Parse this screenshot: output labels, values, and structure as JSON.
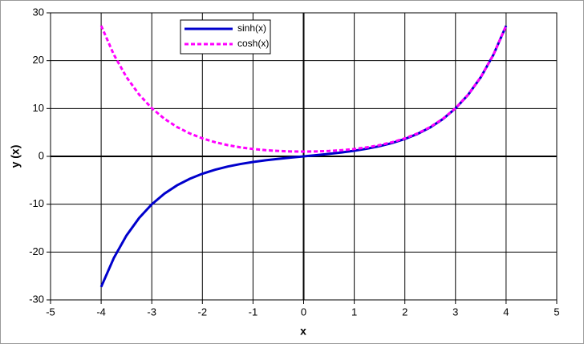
{
  "chart_data": {
    "type": "line",
    "x_label": "x",
    "y_label": "y (x)",
    "x": [
      -4,
      -3.75,
      -3.5,
      -3.25,
      -3,
      -2.75,
      -2.5,
      -2.25,
      -2,
      -1.75,
      -1.5,
      -1.25,
      -1,
      -0.75,
      -0.5,
      -0.25,
      0,
      0.25,
      0.5,
      0.75,
      1,
      1.25,
      1.5,
      1.75,
      2,
      2.25,
      2.5,
      2.75,
      3,
      3.25,
      3.5,
      3.75,
      4
    ],
    "series": [
      {
        "name": "sinh(x)",
        "color": "#0000cc",
        "style": "solid",
        "values": [
          -27.29,
          -21.25,
          -16.54,
          -12.88,
          -10.02,
          -7.79,
          -6.05,
          -4.69,
          -3.63,
          -2.79,
          -2.13,
          -1.6,
          -1.18,
          -0.82,
          -0.52,
          -0.25,
          0,
          0.25,
          0.52,
          0.82,
          1.18,
          1.6,
          2.13,
          2.79,
          3.63,
          4.69,
          6.05,
          7.79,
          10.02,
          12.88,
          16.54,
          21.25,
          27.29
        ]
      },
      {
        "name": "cosh(x)",
        "color": "#ff00ff",
        "style": "dashed",
        "values": [
          27.31,
          21.27,
          16.57,
          12.91,
          10.07,
          7.85,
          6.13,
          4.8,
          3.76,
          2.96,
          2.35,
          1.89,
          1.54,
          1.29,
          1.13,
          1.03,
          1,
          1.03,
          1.13,
          1.29,
          1.54,
          1.89,
          2.35,
          2.96,
          3.76,
          4.8,
          6.13,
          7.85,
          10.07,
          12.91,
          16.57,
          21.27,
          27.31
        ]
      }
    ],
    "xlim": [
      -5,
      5
    ],
    "xticks": [
      -5,
      -4,
      -3,
      -2,
      -1,
      0,
      1,
      2,
      3,
      4,
      5
    ],
    "ylim": [
      -30,
      30
    ],
    "yticks": [
      -30,
      -20,
      -10,
      0,
      10,
      20,
      30
    ],
    "grid": true
  }
}
